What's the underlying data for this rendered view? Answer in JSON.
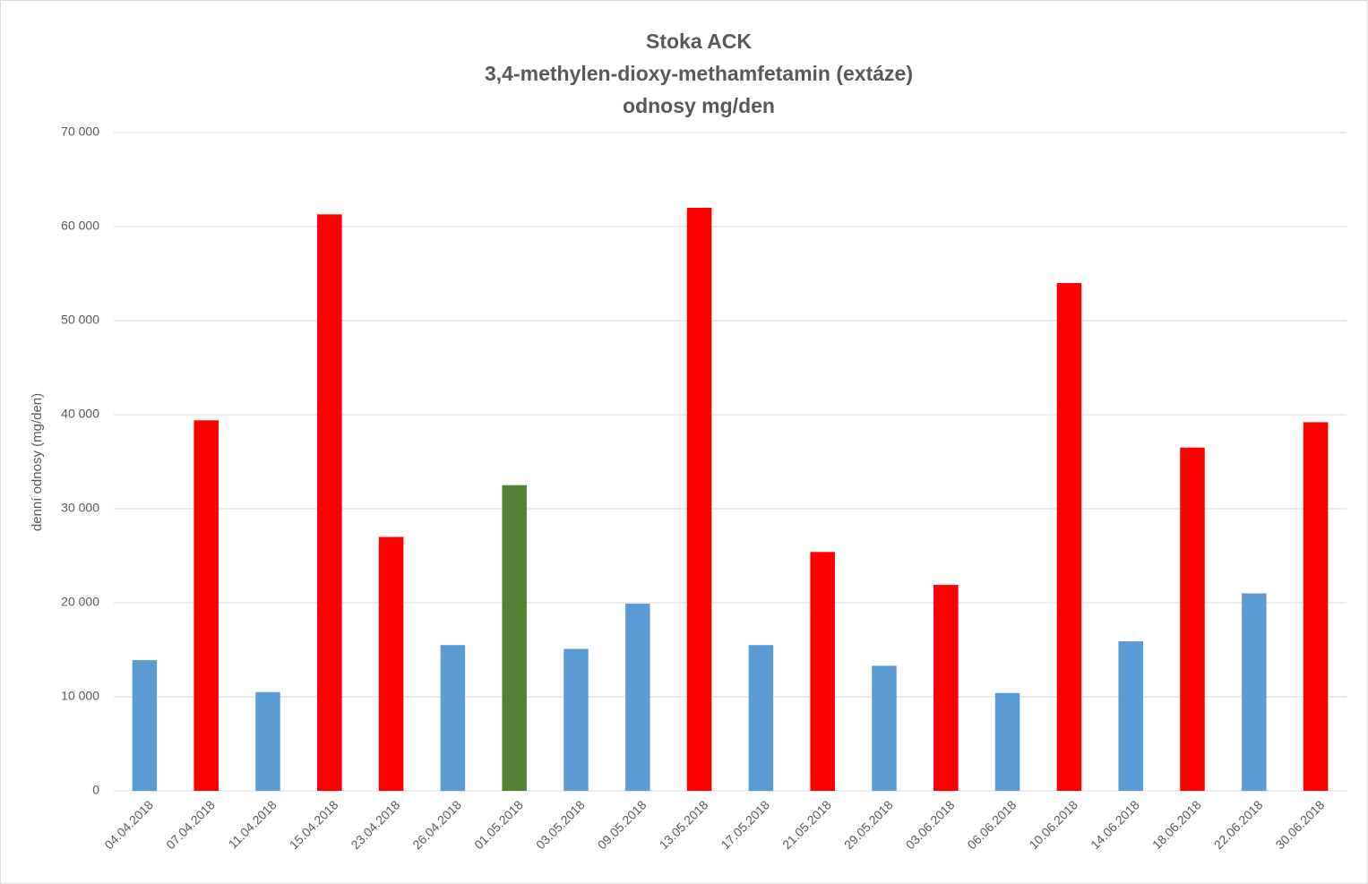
{
  "chart_data": {
    "type": "bar",
    "title": [
      "Stoka ACK",
      "3,4-methylen-dioxy-methamfetamin (extáze)",
      "odnosy mg/den"
    ],
    "y_label": "denní odnosy (mg/den)",
    "categories": [
      "04.04.2018",
      "07.04.2018",
      "11.04.2018",
      "15.04.2018",
      "23.04.2018",
      "26.04.2018",
      "01.05.2018",
      "03.05.2018",
      "09.05.2018",
      "13.05.2018",
      "17.05.2018",
      "21.05.2018",
      "29.05.2018",
      "03.06.2018",
      "06.06.2018",
      "10.06.2018",
      "14.06.2018",
      "18.06.2018",
      "22.06.2018",
      "30.06.2018"
    ],
    "values": [
      13900,
      39400,
      10500,
      61300,
      27000,
      15500,
      32500,
      15100,
      19900,
      62000,
      15500,
      25400,
      13300,
      21900,
      10400,
      54000,
      15900,
      36500,
      21000,
      39200
    ],
    "colors": [
      "#5b9bd5",
      "#ff0000",
      "#5b9bd5",
      "#ff0000",
      "#ff0000",
      "#5b9bd5",
      "#548235",
      "#5b9bd5",
      "#5b9bd5",
      "#ff0000",
      "#5b9bd5",
      "#ff0000",
      "#5b9bd5",
      "#ff0000",
      "#5b9bd5",
      "#ff0000",
      "#5b9bd5",
      "#ff0000",
      "#5b9bd5",
      "#ff0000"
    ],
    "ylim": [
      0,
      70000
    ],
    "yticks": [
      0,
      {
        "value": 10000,
        "label": "10 000"
      },
      {
        "value": 20000,
        "label": "20 000"
      },
      {
        "value": 30000,
        "label": "30 000"
      },
      {
        "value": 40000,
        "label": "40 000"
      },
      {
        "value": 50000,
        "label": "50 000"
      },
      {
        "value": 60000,
        "label": "60 000"
      },
      {
        "value": 70000,
        "label": "70 000"
      }
    ],
    "grid": true
  }
}
